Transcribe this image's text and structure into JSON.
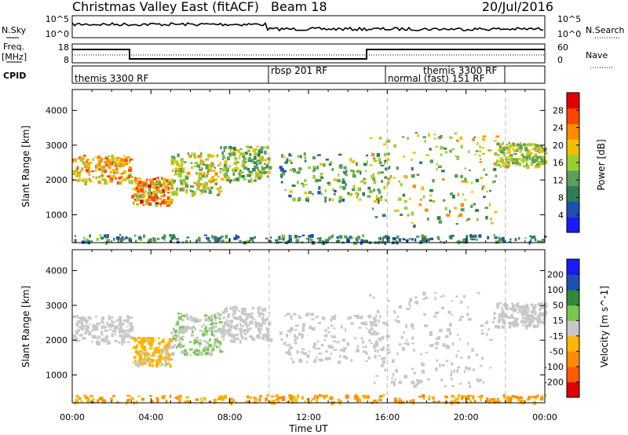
{
  "header": {
    "title": "Christmas Valley East (fitACF)",
    "beam": "Beam 18",
    "date": "20/Jul/2016"
  },
  "top_panels": {
    "nsky": {
      "label": "N.Sky",
      "ticks": [
        "10^5",
        "10^0"
      ]
    },
    "nsearch": {
      "label": "N.Search",
      "ticks": [
        "10^5",
        "10^0"
      ]
    },
    "freq": {
      "label_line1": "Freq.",
      "label_line2": "[MHz]",
      "ticks": [
        "18",
        "8"
      ]
    },
    "nave": {
      "label": "Nave",
      "ticks": [
        "60",
        "0"
      ]
    },
    "cpid": {
      "label": "CPID",
      "segments": [
        {
          "name": "themis 3300 RF",
          "start_hour": 0,
          "end_hour": 10
        },
        {
          "name": "rbsp 201 RF",
          "start_hour": 10,
          "end_hour": 16
        },
        {
          "name": "normal (fast) 151 RF",
          "start_hour": 16,
          "end_hour": 24
        },
        {
          "name": "themis 3300 RF",
          "start_hour": 18,
          "end_hour": 22
        }
      ]
    }
  },
  "colors": {
    "power": [
      "#1a1aff",
      "#1e50b4",
      "#2e7d5b",
      "#5aa05a",
      "#9acd32",
      "#f0c000",
      "#ff8c00",
      "#ff4500",
      "#e00000"
    ],
    "velocity": [
      "#e00000",
      "#ff5a00",
      "#ff8c00",
      "#ffb400",
      "#c8c8c8",
      "#78c850",
      "#2e8b3a",
      "#1e50b4",
      "#1a1aff"
    ]
  },
  "chart_data": [
    {
      "type": "heatmap",
      "name": "power",
      "ylabel": "Slant Range [km]",
      "ylim": [
        200,
        4600
      ],
      "yticks": [
        1000,
        2000,
        3000,
        4000
      ],
      "xlabel": "Time UT",
      "xlim_hours": [
        0,
        24
      ],
      "xticks": [
        "00:00",
        "04:00",
        "08:00",
        "12:00",
        "16:00",
        "20:00",
        "00:00"
      ],
      "colorbar": {
        "label": "Power [dB]",
        "ticks": [
          "28",
          "24",
          "20",
          "16",
          "12",
          "8",
          "4"
        ],
        "range": [
          0,
          30
        ]
      },
      "bands": [
        {
          "t": [
            0,
            3
          ],
          "r": [
            1950,
            2750
          ],
          "v": [
            14,
            26
          ]
        },
        {
          "t": [
            3,
            5
          ],
          "r": [
            1300,
            2100
          ],
          "v": [
            12,
            28
          ]
        },
        {
          "t": [
            5,
            7.5
          ],
          "r": [
            1600,
            2800
          ],
          "v": [
            10,
            22
          ]
        },
        {
          "t": [
            7.5,
            10
          ],
          "r": [
            2000,
            3000
          ],
          "v": [
            8,
            20
          ]
        },
        {
          "t": [
            10.5,
            16
          ],
          "r": [
            1400,
            2800
          ],
          "v": [
            6,
            18
          ]
        },
        {
          "t": [
            15,
            21.5
          ],
          "r": [
            700,
            3400
          ],
          "v": [
            8,
            22
          ]
        },
        {
          "t": [
            21.5,
            24
          ],
          "r": [
            2400,
            3100
          ],
          "v": [
            10,
            20
          ]
        },
        {
          "t": [
            0,
            24
          ],
          "r": [
            230,
            450
          ],
          "v": [
            4,
            14
          ]
        }
      ]
    },
    {
      "type": "heatmap",
      "name": "velocity",
      "ylabel": "Slant Range [km]",
      "ylim": [
        200,
        4600
      ],
      "yticks": [
        1000,
        2000,
        3000,
        4000
      ],
      "xlabel": "Time UT",
      "xlim_hours": [
        0,
        24
      ],
      "xticks": [
        "00:00",
        "04:00",
        "08:00",
        "12:00",
        "16:00",
        "20:00",
        "00:00"
      ],
      "colorbar": {
        "label": "Velocity [m s^-1]",
        "ticks": [
          "200",
          "100",
          "50",
          "15",
          "-15",
          "-50",
          "-100",
          "-200"
        ],
        "range": [
          -250,
          250
        ]
      },
      "bands": [
        {
          "t": [
            0,
            3
          ],
          "r": [
            1950,
            2750
          ],
          "v": [
            -10,
            10
          ]
        },
        {
          "t": [
            3,
            5
          ],
          "r": [
            1300,
            2100
          ],
          "v": [
            -80,
            -20
          ]
        },
        {
          "t": [
            5,
            7.5
          ],
          "r": [
            1600,
            2800
          ],
          "v": [
            -10,
            60
          ]
        },
        {
          "t": [
            7.5,
            10
          ],
          "r": [
            2000,
            3000
          ],
          "v": [
            -10,
            10
          ]
        },
        {
          "t": [
            10.5,
            16
          ],
          "r": [
            1400,
            2800
          ],
          "v": [
            -12,
            12
          ]
        },
        {
          "t": [
            15,
            21.5
          ],
          "r": [
            700,
            3400
          ],
          "v": [
            -12,
            12
          ]
        },
        {
          "t": [
            21.5,
            24
          ],
          "r": [
            2400,
            3100
          ],
          "v": [
            -10,
            10
          ]
        },
        {
          "t": [
            0,
            24
          ],
          "r": [
            230,
            450
          ],
          "v": [
            -120,
            -40
          ]
        }
      ]
    }
  ]
}
